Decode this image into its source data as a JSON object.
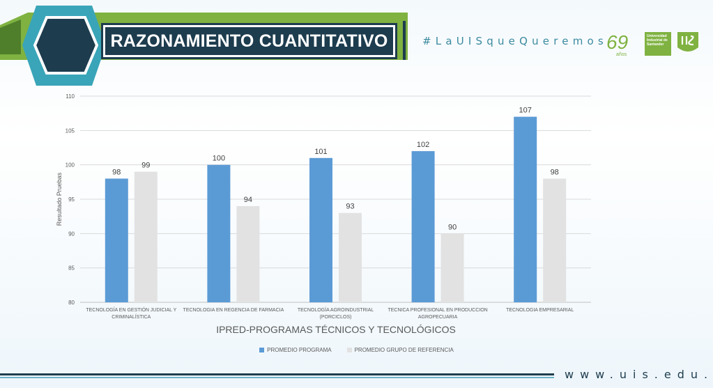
{
  "header": {
    "title": "RAZONAMIENTO CUANTITATIVO",
    "hashtag": "#LaUISqueQueremos",
    "logo_69_text": "69",
    "logo_69_sub": "años",
    "logo_uis_text": "Universidad Industrial de Santander"
  },
  "footer": {
    "url": "www.uis.edu.co"
  },
  "colors": {
    "series1": "#5b9bd5",
    "series2": "#e2e2e2",
    "brand_dark": "#1d3c4e",
    "brand_green": "#7fb241",
    "brand_teal": "#3aa5b8"
  },
  "chart_data": {
    "type": "bar",
    "title": "",
    "xlabel": "IPRED-PROGRAMAS TÉCNICOS Y TECNOLÓGICOS",
    "ylabel": "Resultado Pruebas",
    "ylim": [
      80,
      110
    ],
    "yticks": [
      80,
      85,
      90,
      95,
      100,
      105,
      110
    ],
    "grid": true,
    "legend_position": "bottom",
    "categories": [
      [
        "TECNOLOGÍA EN GESTIÓN JUDICIAL Y",
        "CRIMINALÍSTICA"
      ],
      [
        "TECNOLOGIA EN REGENCIA DE FARMACIA"
      ],
      [
        "TECNOLOGÍA AGROINDUSTRIAL",
        "(PORCICLOS)"
      ],
      [
        "TECNICA PROFESIONAL EN PRODUCCION",
        "AGROPECUARIA"
      ],
      [
        "TECNOLOGIA EMPRESARIAL"
      ]
    ],
    "series": [
      {
        "name": "PROMEDIO PROGRAMA",
        "values": [
          98,
          100,
          101,
          102,
          107
        ]
      },
      {
        "name": "PROMEDIO GRUPO DE REFERENCIA",
        "values": [
          99,
          94,
          93,
          90,
          98
        ]
      }
    ]
  }
}
